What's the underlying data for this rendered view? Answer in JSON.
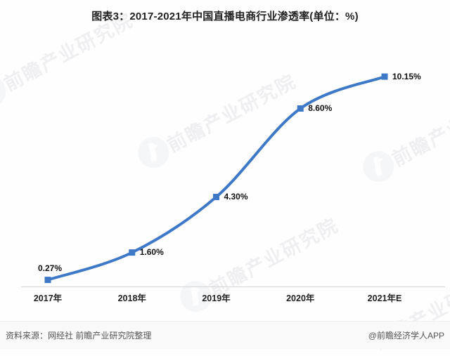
{
  "title": "图表3：2017-2021年中国直播电商行业渗透率(单位：%)",
  "chart_data": {
    "type": "line",
    "categories": [
      "2017年",
      "2018年",
      "2019年",
      "2020年",
      "2021年E"
    ],
    "values": [
      0.27,
      1.6,
      4.3,
      8.6,
      10.15
    ],
    "data_labels": [
      "0.27%",
      "1.60%",
      "4.30%",
      "8.60%",
      "10.15%"
    ],
    "title": "图表3：2017-2021年中国直播电商行业渗透率(单位：%)",
    "xlabel": "",
    "ylabel": "",
    "ylim": [
      0,
      11.5
    ],
    "grid": false,
    "legend": "none",
    "line_color": "#3e79c8",
    "marker": "square",
    "axis_color": "#d9d9d9"
  },
  "watermark": {
    "text": "前瞻产业研究院",
    "logo": "qianzhan-logo"
  },
  "footer": {
    "source": "资料来源：网经社 前瞻产业研究院整理",
    "credit": "@前瞻经济学人APP"
  },
  "colors": {
    "line": "#3e79c8",
    "axis": "#d9d9d9",
    "data_label": "#111111",
    "footer_text": "#555555"
  }
}
